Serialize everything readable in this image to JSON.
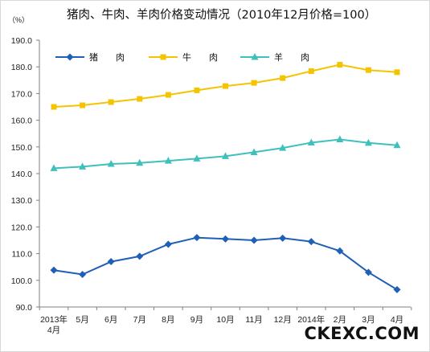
{
  "chart_data": {
    "type": "line",
    "title": "猪肉、牛肉、羊肉价格变动情况（2010年12月价格=100）",
    "unit_label": "（%）",
    "categories": [
      "2013年\n4月",
      "5月",
      "6月",
      "7月",
      "8月",
      "9月",
      "10月",
      "11月",
      "12月",
      "2014年",
      "2月",
      "3月",
      "4月"
    ],
    "ylim": [
      90,
      190
    ],
    "yticks": [
      "90.0",
      "100.0",
      "110.0",
      "120.0",
      "130.0",
      "140.0",
      "150.0",
      "160.0",
      "170.0",
      "180.0",
      "190.0"
    ],
    "grid": false,
    "legend_position": "top-left",
    "series": [
      {
        "name": "猪　　肉",
        "color": "#1f5fb5",
        "marker": "diamond",
        "values": [
          103.8,
          102.2,
          107.0,
          109.0,
          113.5,
          116.0,
          115.5,
          115.0,
          115.8,
          114.5,
          111.0,
          103.0,
          96.5
        ]
      },
      {
        "name": "牛　　肉",
        "color": "#f5c400",
        "marker": "square",
        "values": [
          165.0,
          165.6,
          166.8,
          168.0,
          169.5,
          171.2,
          172.8,
          174.0,
          175.8,
          178.4,
          180.8,
          178.8,
          178.0
        ]
      },
      {
        "name": "羊　　肉",
        "color": "#3ec1bd",
        "marker": "triangle",
        "values": [
          142.0,
          142.6,
          143.6,
          144.0,
          144.8,
          145.6,
          146.5,
          148.0,
          149.6,
          151.6,
          152.8,
          151.5,
          150.6
        ]
      }
    ]
  },
  "watermark": "CKEXC.COM"
}
